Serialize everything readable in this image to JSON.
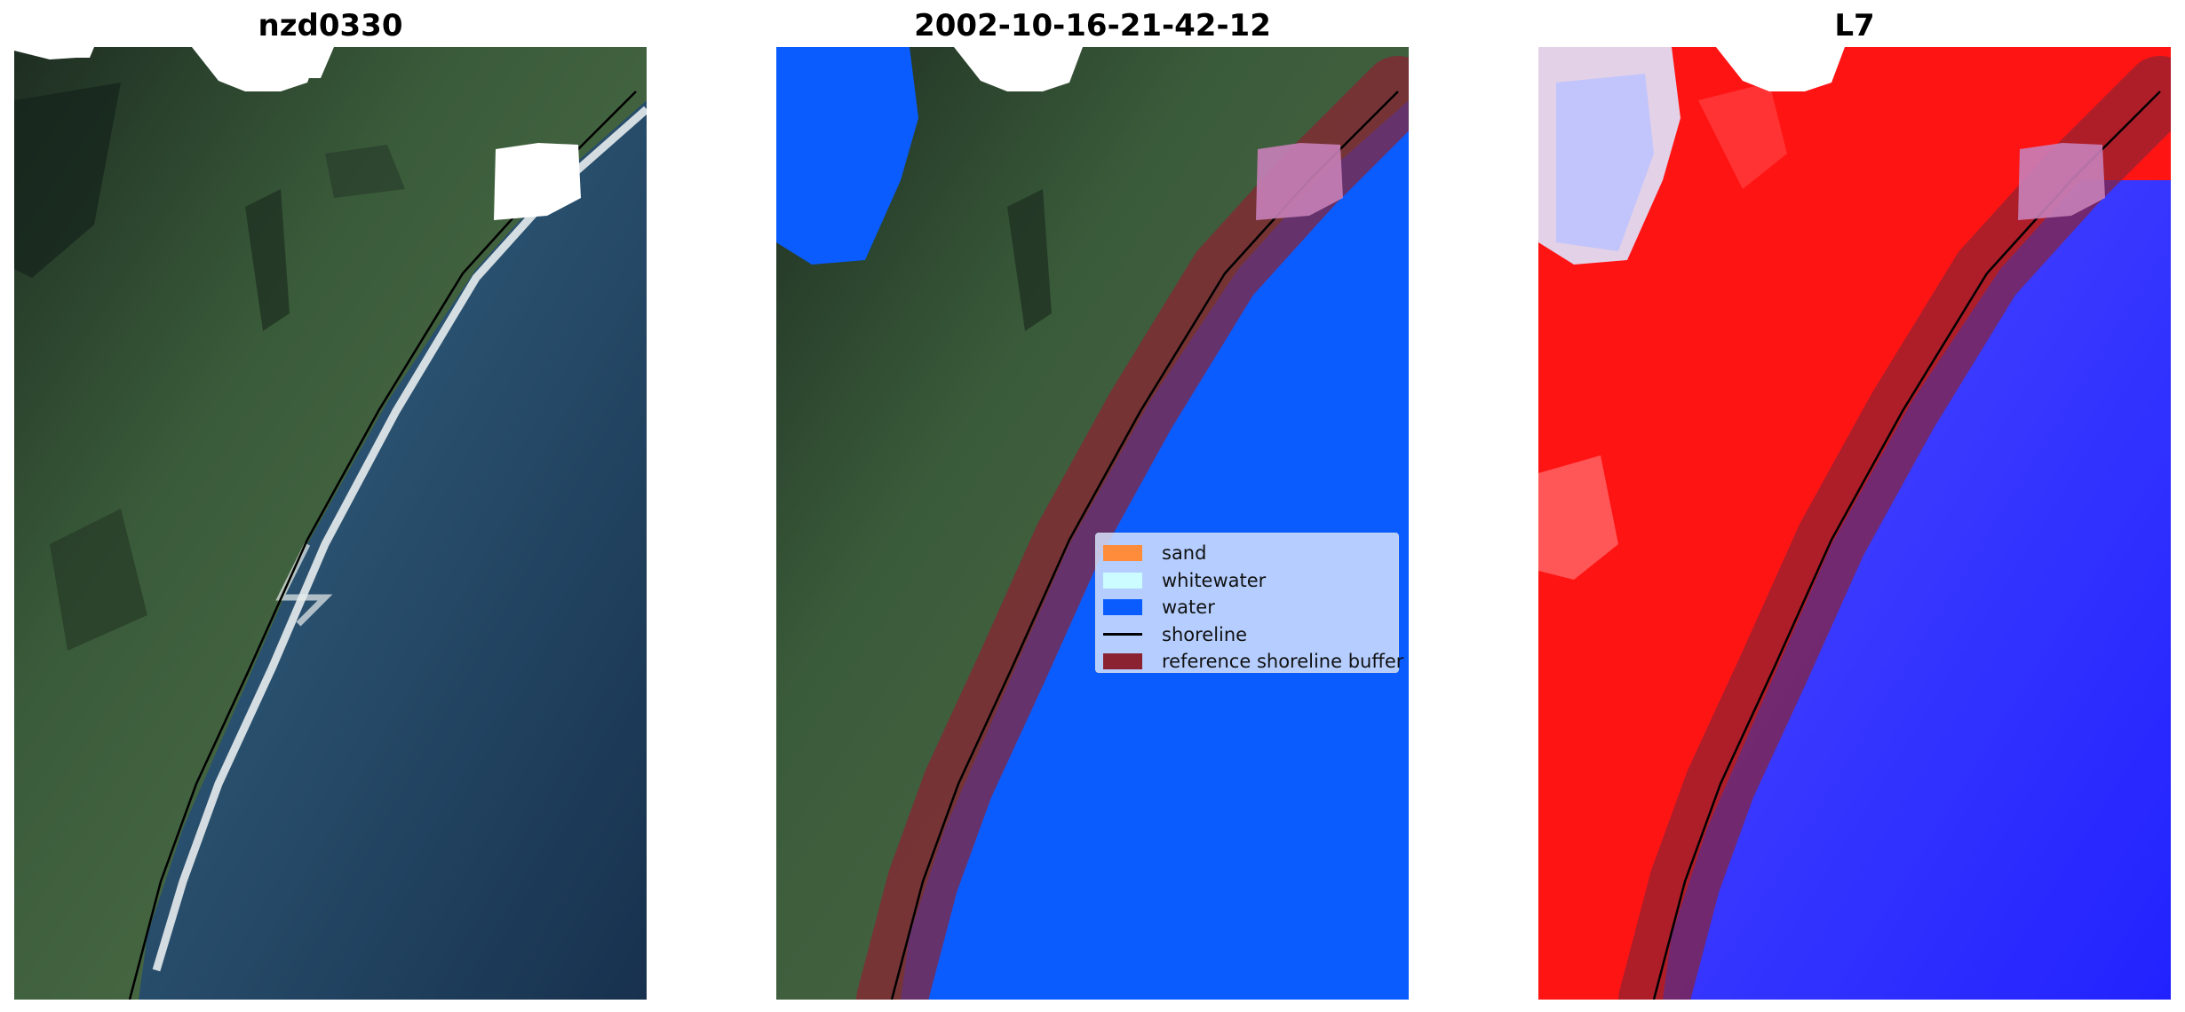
{
  "titles": {
    "site": "nzd0330",
    "date": "2002-10-16-21-42-12",
    "satellite": "L7"
  },
  "legend": {
    "items": [
      {
        "label": "sand",
        "color": "#ff8c3a",
        "kind": "patch"
      },
      {
        "label": "whitewater",
        "color": "#ccfcff",
        "kind": "patch"
      },
      {
        "label": "water",
        "color": "#0a5cff",
        "kind": "patch"
      },
      {
        "label": "shoreline",
        "color": "#000000",
        "kind": "line"
      },
      {
        "label": "reference shoreline buffer",
        "color": "#8b2232",
        "kind": "patch"
      }
    ]
  },
  "colors": {
    "land": "#3b5a3a",
    "ocean": "#1e3e5a",
    "water_class": "#0a5cff",
    "buffer": "#8b2232",
    "mndwi_land": "#ff1010",
    "mndwi_water": "#2a2aff",
    "cloud": "#ffffff"
  }
}
